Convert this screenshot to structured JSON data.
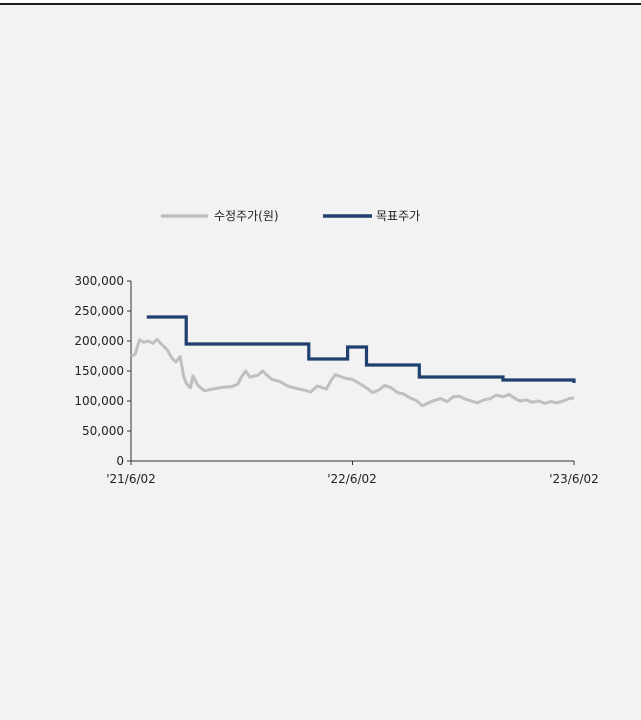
{
  "chart_data": {
    "type": "line",
    "x_axis": {
      "tick_labels": [
        "'21/6/02",
        "'22/6/02",
        "'23/6/02"
      ]
    },
    "y_axis": {
      "ylim": [
        0,
        300000
      ],
      "tick_values": [
        0,
        50000,
        100000,
        150000,
        200000,
        250000,
        300000
      ],
      "tick_labels": [
        "0",
        "50,000",
        "100,000",
        "150,000",
        "200,000",
        "250,000",
        "300,000"
      ]
    },
    "grid": false,
    "legend_placement": "top-center",
    "series": [
      {
        "name": "수정주가(원)",
        "color": "#bfbfbf",
        "points": [
          [
            "'21/6/02",
            175000
          ],
          [
            "'21/6/09",
            178000
          ],
          [
            "'21/6/16",
            202000
          ],
          [
            "'21/6/23",
            198000
          ],
          [
            "'21/7/01",
            200000
          ],
          [
            "'21/7/08",
            196000
          ],
          [
            "'21/7/15",
            203000
          ],
          [
            "'21/7/22",
            195000
          ],
          [
            "'21/8/01",
            185000
          ],
          [
            "'21/8/08",
            172000
          ],
          [
            "'21/8/15",
            165000
          ],
          [
            "'21/8/22",
            174000
          ],
          [
            "'21/8/28",
            140000
          ],
          [
            "'21/9/02",
            128000
          ],
          [
            "'21/9/08",
            122000
          ],
          [
            "'21/9/12",
            142000
          ],
          [
            "'21/9/20",
            126000
          ],
          [
            "'21/10/01",
            117000
          ],
          [
            "'21/10/15",
            120000
          ],
          [
            "'21/11/01",
            123000
          ],
          [
            "'21/11/15",
            124000
          ],
          [
            "'21/11/25",
            128000
          ],
          [
            "'21/12/01",
            140000
          ],
          [
            "'21/12/08",
            150000
          ],
          [
            "'21/12/15",
            140000
          ],
          [
            "'21/12/28",
            143000
          ],
          [
            "'22/1/05",
            150000
          ],
          [
            "'22/1/12",
            143000
          ],
          [
            "'22/1/20",
            136000
          ],
          [
            "'22/2/01",
            133000
          ],
          [
            "'22/2/15",
            125000
          ],
          [
            "'22/3/01",
            121000
          ],
          [
            "'22/3/15",
            118000
          ],
          [
            "'22/3/25",
            115000
          ],
          [
            "'22/4/05",
            125000
          ],
          [
            "'22/4/20",
            120000
          ],
          [
            "'22/4/28",
            135000
          ],
          [
            "'22/5/05",
            144000
          ],
          [
            "'22/5/15",
            140000
          ],
          [
            "'22/5/25",
            137000
          ],
          [
            "'22/6/02",
            136000
          ],
          [
            "'22/6/12",
            130000
          ],
          [
            "'22/6/25",
            122000
          ],
          [
            "'22/7/05",
            114000
          ],
          [
            "'22/7/15",
            118000
          ],
          [
            "'22/7/25",
            126000
          ],
          [
            "'22/8/05",
            122000
          ],
          [
            "'22/8/15",
            114000
          ],
          [
            "'22/8/25",
            112000
          ],
          [
            "'22/9/05",
            105000
          ],
          [
            "'22/9/15",
            101000
          ],
          [
            "'22/9/25",
            92000
          ],
          [
            "'22/10/05",
            97000
          ],
          [
            "'22/10/15",
            101000
          ],
          [
            "'22/10/25",
            104000
          ],
          [
            "'22/11/05",
            99000
          ],
          [
            "'22/11/15",
            107000
          ],
          [
            "'22/11/25",
            108000
          ],
          [
            "'22/12/05",
            103000
          ],
          [
            "'22/12/15",
            100000
          ],
          [
            "'22/12/25",
            97000
          ],
          [
            "'23/1/05",
            102000
          ],
          [
            "'23/1/15",
            104000
          ],
          [
            "'23/1/25",
            110000
          ],
          [
            "'23/2/05",
            107000
          ],
          [
            "'23/2/15",
            111000
          ],
          [
            "'23/2/25",
            104000
          ],
          [
            "'23/3/05",
            100000
          ],
          [
            "'23/3/15",
            102000
          ],
          [
            "'23/3/25",
            98000
          ],
          [
            "'23/4/05",
            100000
          ],
          [
            "'23/4/15",
            96000
          ],
          [
            "'23/4/25",
            99000
          ],
          [
            "'23/5/05",
            97000
          ],
          [
            "'23/5/15",
            100000
          ],
          [
            "'23/5/25",
            104000
          ],
          [
            "'23/6/02",
            105000
          ]
        ]
      },
      {
        "name": "목표주가",
        "color": "#1f3f6e",
        "points": [
          [
            "'21/6/28",
            240000
          ],
          [
            "'21/9/01",
            240000
          ],
          [
            "'21/9/01",
            195000
          ],
          [
            "'22/3/22",
            195000
          ],
          [
            "'22/3/22",
            170000
          ],
          [
            "'22/5/25",
            170000
          ],
          [
            "'22/5/25",
            190000
          ],
          [
            "'22/6/25",
            190000
          ],
          [
            "'22/6/25",
            160000
          ],
          [
            "'22/9/20",
            160000
          ],
          [
            "'22/9/20",
            140000
          ],
          [
            "'23/2/05",
            140000
          ],
          [
            "'23/2/05",
            135000
          ],
          [
            "'23/6/02",
            135000
          ],
          [
            "'23/6/02",
            130000
          ]
        ]
      }
    ]
  }
}
